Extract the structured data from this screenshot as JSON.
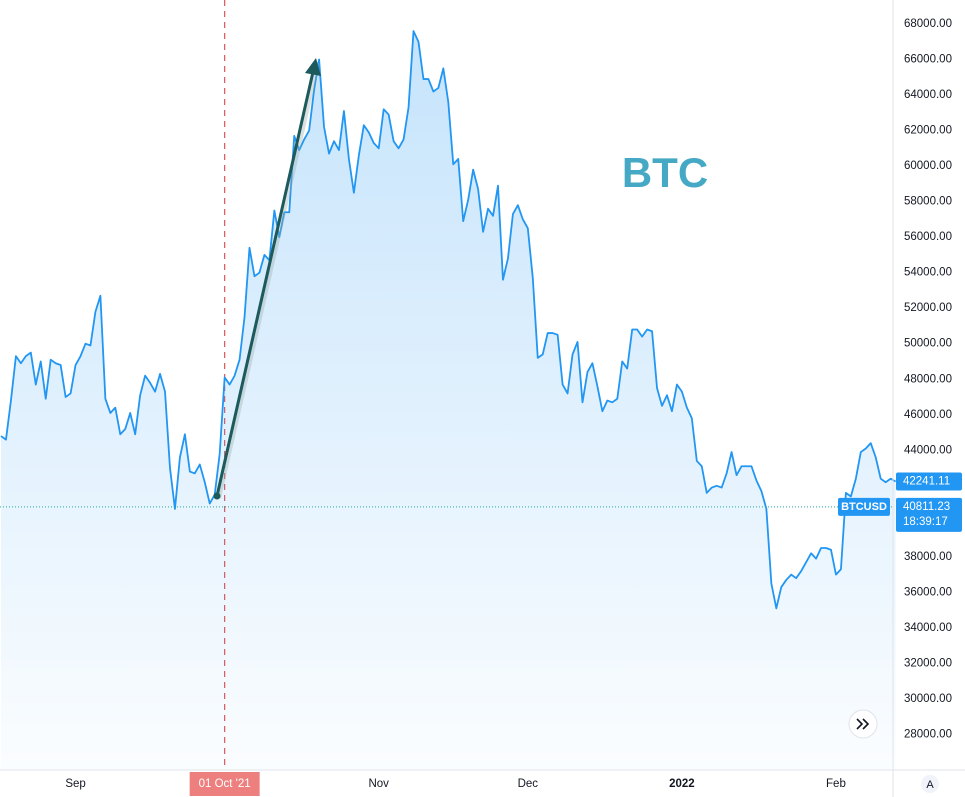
{
  "chart_data": {
    "type": "area",
    "annotation": "BTC",
    "color": "#2196f3",
    "highlight_category": 45,
    "price_line": {
      "name": "BTCUSD",
      "value": 40811.23,
      "time": "18:39:17",
      "color": "#26a69a"
    },
    "ui": {
      "auto_button": "A"
    },
    "ylim": [
      26000,
      69350
    ],
    "yticks": [
      {
        "value": 28000,
        "label": "28000.00"
      },
      {
        "value": 30000,
        "label": "30000.00"
      },
      {
        "value": 32000,
        "label": "32000.00"
      },
      {
        "value": 34000,
        "label": "34000.00"
      },
      {
        "value": 36000,
        "label": "36000.00"
      },
      {
        "value": 38000,
        "label": "38000.00"
      },
      {
        "value": 40000,
        "label": "40000.00"
      },
      {
        "value": 42000,
        "label": "42000.00"
      },
      {
        "value": 44000,
        "label": "44000.00"
      },
      {
        "value": 46000,
        "label": "46000.00"
      },
      {
        "value": 48000,
        "label": "48000.00"
      },
      {
        "value": 50000,
        "label": "50000.00"
      },
      {
        "value": 52000,
        "label": "52000.00"
      },
      {
        "value": 54000,
        "label": "54000.00"
      },
      {
        "value": 56000,
        "label": "56000.00"
      },
      {
        "value": 58000,
        "label": "58000.00"
      },
      {
        "value": 60000,
        "label": "60000.00"
      },
      {
        "value": 62000,
        "label": "62000.00"
      },
      {
        "value": 64000,
        "label": "64000.00"
      },
      {
        "value": 66000,
        "label": "66000.00"
      },
      {
        "value": 68000,
        "label": "68000.00"
      }
    ],
    "categories": [
      null,
      null,
      null,
      null,
      null,
      null,
      null,
      null,
      null,
      null,
      null,
      null,
      null,
      null,
      null,
      "Sep",
      null,
      null,
      null,
      null,
      null,
      null,
      null,
      null,
      null,
      null,
      null,
      null,
      null,
      null,
      null,
      null,
      null,
      null,
      null,
      null,
      null,
      null,
      null,
      null,
      null,
      null,
      null,
      null,
      null,
      "01 Oct '21",
      null,
      null,
      null,
      null,
      null,
      null,
      null,
      null,
      null,
      null,
      null,
      null,
      null,
      null,
      null,
      null,
      null,
      null,
      null,
      null,
      null,
      null,
      null,
      null,
      null,
      null,
      null,
      null,
      null,
      null,
      "Nov",
      null,
      null,
      null,
      null,
      null,
      null,
      null,
      null,
      null,
      null,
      null,
      null,
      null,
      null,
      null,
      null,
      null,
      null,
      null,
      null,
      null,
      null,
      null,
      null,
      null,
      null,
      null,
      null,
      null,
      "Dec",
      null,
      null,
      null,
      null,
      null,
      null,
      null,
      null,
      null,
      null,
      null,
      null,
      null,
      null,
      null,
      null,
      null,
      null,
      null,
      null,
      null,
      null,
      null,
      null,
      null,
      null,
      null,
      null,
      null,
      null,
      "2022",
      null,
      null,
      null,
      null,
      null,
      null,
      null,
      null,
      null,
      null,
      null,
      null,
      null,
      null,
      null,
      null,
      null,
      null,
      null,
      null,
      null,
      null,
      null,
      null,
      null,
      null,
      null,
      null,
      null,
      null,
      "Feb",
      null,
      null,
      null,
      null,
      null,
      null,
      null,
      null,
      null,
      null,
      null,
      null
    ],
    "values": [
      44800,
      44600,
      46800,
      49300,
      48900,
      49300,
      49500,
      47700,
      49000,
      46900,
      49100,
      48900,
      48800,
      47000,
      47200,
      48800,
      49300,
      50000,
      49900,
      51800,
      52700,
      46900,
      46100,
      46400,
      44900,
      45200,
      46100,
      44900,
      47100,
      48200,
      47800,
      47300,
      48300,
      47300,
      43000,
      40700,
      43600,
      44900,
      42800,
      42700,
      43200,
      42200,
      41000,
      41500,
      43800,
      48100,
      47700,
      48200,
      49100,
      51500,
      55400,
      53800,
      54000,
      55000,
      54700,
      57500,
      56000,
      57400,
      57400,
      61700,
      60900,
      61500,
      62000,
      64300,
      66000,
      62200,
      60700,
      61400,
      60900,
      63100,
      60400,
      58500,
      60600,
      62300,
      61900,
      61300,
      61000,
      63200,
      62900,
      61400,
      61000,
      61500,
      63300,
      67600,
      67000,
      64900,
      64900,
      64200,
      64400,
      65500,
      63600,
      60100,
      60400,
      56900,
      58100,
      59800,
      58700,
      56300,
      57600,
      57200,
      58900,
      53600,
      54800,
      57300,
      57800,
      57000,
      56500,
      53700,
      49200,
      49400,
      50600,
      50600,
      50500,
      47700,
      47200,
      49400,
      50100,
      46700,
      48400,
      48900,
      47600,
      46200,
      46800,
      46700,
      46900,
      49000,
      48600,
      50800,
      50800,
      50400,
      50800,
      50700,
      47500,
      46500,
      47100,
      46200,
      47700,
      47300,
      46400,
      45800,
      43400,
      43100,
      41600,
      41900,
      42000,
      41900,
      42700,
      43900,
      42600,
      43100,
      43100,
      43100,
      42300,
      41700,
      40700,
      36500,
      35100,
      36300,
      36700,
      37000,
      36800,
      37200,
      37700,
      38200,
      37900,
      38500,
      38500,
      38400,
      37000,
      37300,
      41600,
      41400,
      42400,
      43900,
      44100,
      44400,
      43600,
      42400,
      42200,
      42400,
      42241.11
    ]
  }
}
